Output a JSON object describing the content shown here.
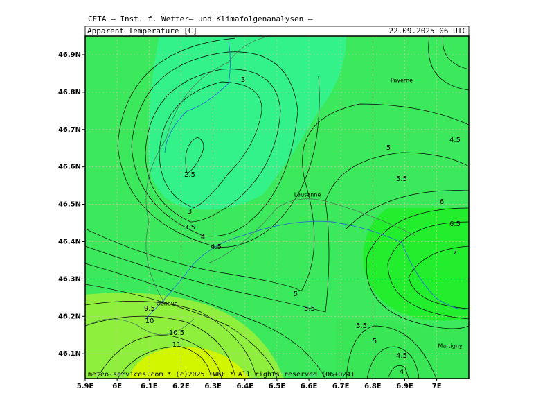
{
  "header": {
    "institute": "CETA — Inst. f. Wetter— und Klimafolgenanalysen —",
    "title": "Apparent_Temperature [C]",
    "date": "22.09.2025 06 UTC"
  },
  "axes": {
    "y_ticks": [
      "46.9N",
      "46.8N",
      "46.7N",
      "46.6N",
      "46.5N",
      "46.4N",
      "46.3N",
      "46.2N",
      "46.1N"
    ],
    "x_ticks": [
      "5.9E",
      "6E",
      "6.1E",
      "6.2E",
      "6.3E",
      "6.4E",
      "6.5E",
      "6.6E",
      "6.7E",
      "6.8E",
      "6.9E",
      "7E"
    ]
  },
  "contour_labels": [
    "3",
    "2.5",
    "3",
    "3.5",
    "4",
    "4.5",
    "5",
    "5.5",
    "9.5",
    "10",
    "10.5",
    "11",
    "5",
    "5.5",
    "4.5",
    "6",
    "6.5",
    "7",
    "5.5",
    "5",
    "4.5",
    "4"
  ],
  "cities": [
    "Payerne",
    "Lausanne",
    "Geneve",
    "Martigny"
  ],
  "footer": "meteo-services.com * (c)2025 IWKF * All rights reserved (06+024)"
}
